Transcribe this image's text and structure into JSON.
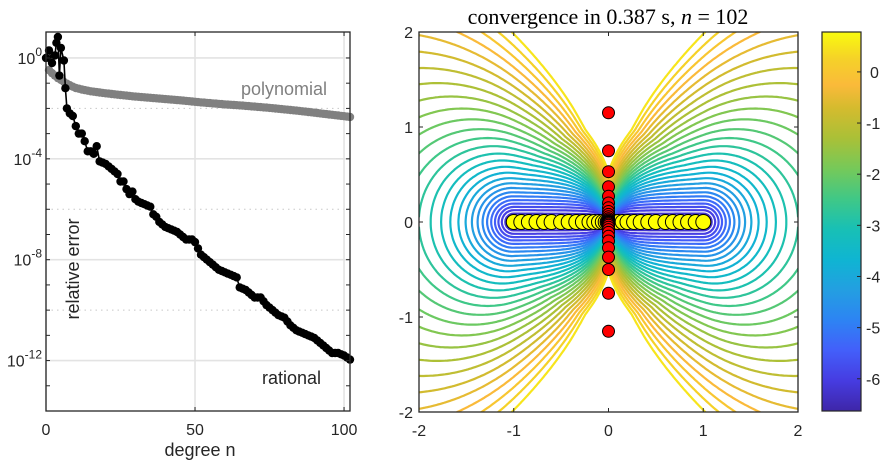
{
  "chart_data": [
    {
      "type": "line",
      "title": "",
      "xlabel": "degree n",
      "ylabel": "relative error",
      "xlim": [
        0,
        102
      ],
      "ylim_log10": [
        -14,
        1.03
      ],
      "yscale": "log",
      "grid": true,
      "x_ticks": [
        0,
        50,
        100
      ],
      "x_tick_labels": [
        "0",
        "50",
        "100"
      ],
      "y_ticks_log10": [
        0,
        -4,
        -8,
        -12
      ],
      "y_tick_labels": [
        {
          "base": "10",
          "exp": "0"
        },
        {
          "base": "10",
          "exp": "-4"
        },
        {
          "base": "10",
          "exp": "-8"
        },
        {
          "base": "10",
          "exp": "-12"
        }
      ],
      "annotations": [
        {
          "text": "polynomial",
          "color": "#808080"
        },
        {
          "text": "rational",
          "color": "#000000"
        }
      ],
      "series": [
        {
          "name": "polynomial",
          "color": "#808080",
          "x_log10_pairs": [
            [
              1,
              -0.48
            ],
            [
              2,
              -0.6
            ],
            [
              3,
              -0.7
            ],
            [
              4,
              -0.8
            ],
            [
              5,
              -0.87
            ],
            [
              6,
              -0.95
            ],
            [
              7,
              -1.02
            ],
            [
              8,
              -1.08
            ],
            [
              9,
              -1.14
            ],
            [
              10,
              -1.19
            ],
            [
              12,
              -1.25
            ],
            [
              15,
              -1.32
            ],
            [
              20,
              -1.4
            ],
            [
              25,
              -1.47
            ],
            [
              30,
              -1.53
            ],
            [
              35,
              -1.58
            ],
            [
              40,
              -1.63
            ],
            [
              45,
              -1.68
            ],
            [
              50,
              -1.74
            ],
            [
              55,
              -1.79
            ],
            [
              60,
              -1.84
            ],
            [
              65,
              -1.88
            ],
            [
              70,
              -1.93
            ],
            [
              75,
              -1.98
            ],
            [
              80,
              -2.04
            ],
            [
              85,
              -2.1
            ],
            [
              90,
              -2.17
            ],
            [
              95,
              -2.24
            ],
            [
              100,
              -2.31
            ],
            [
              102,
              -2.34
            ]
          ]
        },
        {
          "name": "rational",
          "color": "#000000",
          "x_log10_pairs": [
            [
              0,
              0
            ],
            [
              1,
              0.3
            ],
            [
              2,
              -0.2
            ],
            [
              3,
              0.1
            ],
            [
              3.5,
              0.6
            ],
            [
              4,
              0.83
            ],
            [
              4.5,
              -0.7
            ],
            [
              5,
              0.4
            ],
            [
              6,
              -0.1
            ],
            [
              6.5,
              -1.2
            ],
            [
              7,
              -2.0
            ],
            [
              8,
              -2.2
            ],
            [
              9,
              -2.3
            ],
            [
              10,
              -2.7
            ],
            [
              11,
              -3.0
            ],
            [
              12,
              -3.0
            ],
            [
              13,
              -3.3
            ],
            [
              14,
              -3.7
            ],
            [
              15,
              -3.7
            ],
            [
              16,
              -3.8
            ],
            [
              17,
              -3.5
            ],
            [
              18,
              -4.1
            ],
            [
              20,
              -4.2
            ],
            [
              22,
              -4.4
            ],
            [
              24,
              -4.6
            ],
            [
              25,
              -4.9
            ],
            [
              26,
              -4.9
            ],
            [
              27,
              -5.2
            ],
            [
              28,
              -5.4
            ],
            [
              29,
              -5.3
            ],
            [
              30,
              -5.6
            ],
            [
              31,
              -5.7
            ],
            [
              33,
              -5.8
            ],
            [
              35,
              -5.9
            ],
            [
              36,
              -6.2
            ],
            [
              37,
              -6.3
            ],
            [
              38,
              -6.5
            ],
            [
              40,
              -6.7
            ],
            [
              42,
              -6.8
            ],
            [
              44,
              -6.9
            ],
            [
              45,
              -7.0
            ],
            [
              47,
              -7.2
            ],
            [
              49,
              -7.2
            ],
            [
              50,
              -7.3
            ],
            [
              52,
              -7.8
            ],
            [
              54,
              -8.0
            ],
            [
              56,
              -8.2
            ],
            [
              58,
              -8.4
            ],
            [
              60,
              -8.5
            ],
            [
              62,
              -8.6
            ],
            [
              64,
              -8.7
            ],
            [
              65,
              -9.1
            ],
            [
              67,
              -9.2
            ],
            [
              69,
              -9.4
            ],
            [
              70,
              -9.5
            ],
            [
              72,
              -9.5
            ],
            [
              74,
              -9.8
            ],
            [
              76,
              -10.0
            ],
            [
              78,
              -10.2
            ],
            [
              80,
              -10.3
            ],
            [
              82,
              -10.6
            ],
            [
              84,
              -10.8
            ],
            [
              86,
              -10.9
            ],
            [
              88,
              -11.0
            ],
            [
              90,
              -11.1
            ],
            [
              92,
              -11.3
            ],
            [
              94,
              -11.5
            ],
            [
              96,
              -11.7
            ],
            [
              98,
              -11.7
            ],
            [
              100,
              -11.8
            ],
            [
              102,
              -11.96
            ]
          ]
        }
      ]
    },
    {
      "type": "contour",
      "title_text": "convergence in 0.387 s, ",
      "title_var": "n",
      "title_eq": " = 102",
      "xlim": [
        -2,
        2
      ],
      "ylim": [
        -2,
        2
      ],
      "x_ticks": [
        -2,
        -1,
        0,
        1,
        2
      ],
      "x_tick_labels": [
        "-2",
        "-1",
        "0",
        "1",
        "2"
      ],
      "y_ticks": [
        2,
        1,
        0,
        -1,
        -2
      ],
      "y_tick_labels": [
        "2",
        "1",
        "0",
        "-1",
        "-2"
      ],
      "colorbar": {
        "range": [
          -6.63,
          0.78
        ],
        "ticks": [
          0,
          -1,
          -2,
          -3,
          -4,
          -5,
          -6
        ],
        "tick_labels": [
          "0",
          "-1",
          "-2",
          "-3",
          "-4",
          "-5",
          "-6"
        ],
        "colormap": "parula"
      },
      "contour_levels": {
        "from": -6.5,
        "to": 0.5,
        "step": 0.25
      },
      "sample_points": {
        "color": "#ffff00",
        "y": 0,
        "x": [
          -1,
          -0.92,
          -0.84,
          -0.76,
          -0.68,
          -0.6,
          -0.5,
          -0.42,
          -0.34,
          -0.27,
          -0.2,
          -0.15,
          -0.1,
          -0.06,
          -0.03,
          -0.01,
          0,
          0.01,
          0.03,
          0.06,
          0.1,
          0.15,
          0.2,
          0.27,
          0.34,
          0.42,
          0.5,
          0.6,
          0.68,
          0.76,
          0.84,
          0.92,
          1
        ]
      },
      "poles": {
        "color": "#ff0000",
        "x": 0,
        "y": [
          1.15,
          0.75,
          0.53,
          0.37,
          0.27,
          0.2,
          0.15,
          0.11,
          0.08,
          0.055,
          0.035,
          0.02,
          0.008,
          0,
          -0.008,
          -0.02,
          -0.035,
          -0.055,
          -0.08,
          -0.11,
          -0.15,
          -0.2,
          -0.27,
          -0.37,
          -0.5,
          -0.75,
          -1.15
        ]
      }
    }
  ]
}
